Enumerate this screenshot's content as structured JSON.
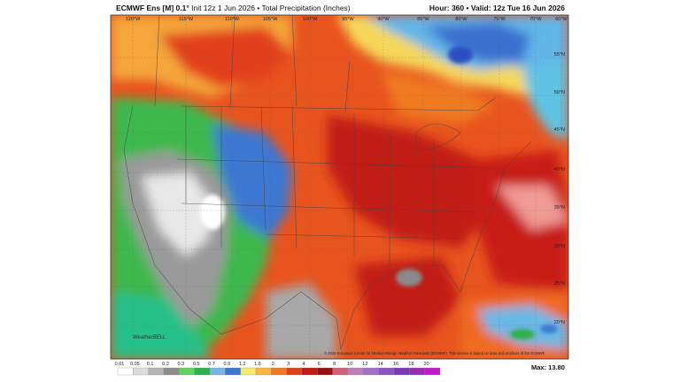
{
  "header": {
    "model": "ECMWF Ens [M] 0.1°",
    "run": "Init 12z 1 Jun 2026 • Total Precipitation (Inches)",
    "hour": "Hour: 360",
    "valid": "• Valid: 12z Tue 16 Jun 2026"
  },
  "map": {
    "longitudes": [
      "120°W",
      "115°W",
      "110°W",
      "105°W",
      "100°W",
      "95°W",
      "90°W",
      "85°W",
      "80°W",
      "75°W",
      "70°W",
      "60°W"
    ],
    "latitudes": [
      "55°N",
      "50°N",
      "45°N",
      "40°N",
      "35°N",
      "30°N",
      "25°N",
      "20°N"
    ],
    "logo": "WeatherBELL",
    "credit": "© 2025 European Centre for Medium-Range Weather Forecasts (ECMWF). This service is based on data and products of the ECMWF."
  },
  "legend": {
    "levels": [
      "0.01",
      "0.05",
      "0.1",
      "0.2",
      "0.3",
      "0.5",
      "0.7",
      "0.9",
      "1.2",
      "1.6",
      "2",
      "3",
      "4",
      "6",
      "8",
      "10",
      "12",
      "14",
      "16",
      "18",
      "20"
    ],
    "colors": [
      "#ffffff",
      "#dcdcdc",
      "#b4b4b4",
      "#8c8c8c",
      "#5fd35f",
      "#2fb04a",
      "#78b4e6",
      "#3c78d2",
      "#f6ea6e",
      "#f9b53c",
      "#f07a22",
      "#e2401c",
      "#c21a14",
      "#9a1010",
      "#d2607a",
      "#c07cb4",
      "#a36ec8",
      "#8a56c0",
      "#7a3ab8",
      "#9a2cb4",
      "#c01cc8"
    ],
    "max": "Max: 13.80"
  }
}
